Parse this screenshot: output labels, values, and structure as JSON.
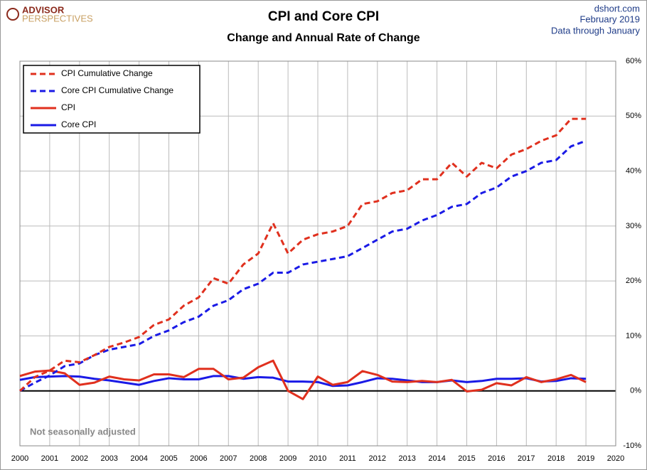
{
  "header": {
    "logo_top": "ADVISOR",
    "logo_bottom": "PERSPECTIVES",
    "source": "dshort.com",
    "date": "February 2019",
    "data_note": "Data through January"
  },
  "chart_data": {
    "type": "line",
    "title": "CPI and Core CPI",
    "subtitle": "Change and Annual Rate of Change",
    "annotation": "Not seasonally adjusted",
    "x": [
      2000,
      2000.5,
      2001,
      2001.5,
      2002,
      2002.5,
      2003,
      2003.5,
      2004,
      2004.5,
      2005,
      2005.5,
      2006,
      2006.5,
      2007,
      2007.5,
      2008,
      2008.5,
      2009,
      2009.5,
      2010,
      2010.5,
      2011,
      2011.5,
      2012,
      2012.5,
      2013,
      2013.5,
      2014,
      2014.5,
      2015,
      2015.5,
      2016,
      2016.5,
      2017,
      2017.5,
      2018,
      2018.5,
      2019
    ],
    "series": [
      {
        "name": "CPI Cumulative Change",
        "color": "#e0301e",
        "dashed": true,
        "values": [
          0,
          2.5,
          3.7,
          5.5,
          5.2,
          6.5,
          8.0,
          8.8,
          9.8,
          12,
          13,
          15.5,
          17,
          20.5,
          19.5,
          23,
          25,
          30.5,
          25,
          27.5,
          28.5,
          29,
          30,
          34,
          34.5,
          36,
          36.5,
          38.5,
          38.5,
          41.5,
          39,
          41.5,
          40.5,
          43,
          44,
          45.5,
          46.5,
          49.5,
          49.5
        ]
      },
      {
        "name": "Core CPI Cumulative Change",
        "color": "#1a1ae6",
        "dashed": true,
        "values": [
          0,
          1.5,
          2.8,
          4.5,
          5.0,
          6.5,
          7.5,
          8.0,
          8.5,
          10,
          11,
          12.5,
          13.5,
          15.5,
          16.5,
          18.5,
          19.5,
          21.5,
          21.5,
          23,
          23.5,
          24,
          24.5,
          26,
          27.5,
          29,
          29.5,
          31,
          32,
          33.5,
          34,
          36,
          37,
          39,
          40,
          41.5,
          42,
          44.5,
          45.5
        ]
      },
      {
        "name": "CPI",
        "color": "#e0301e",
        "dashed": false,
        "values": [
          2.7,
          3.5,
          3.7,
          3.2,
          1.1,
          1.5,
          2.6,
          2.1,
          1.9,
          3.0,
          3.0,
          2.5,
          4.0,
          4.0,
          2.1,
          2.4,
          4.3,
          5.5,
          0.0,
          -1.5,
          2.6,
          1.1,
          1.6,
          3.6,
          2.9,
          1.7,
          1.6,
          1.8,
          1.6,
          2.0,
          -0.1,
          0.2,
          1.4,
          1.0,
          2.5,
          1.6,
          2.1,
          2.9,
          1.6
        ]
      },
      {
        "name": "Core CPI",
        "color": "#1a1ae6",
        "dashed": false,
        "values": [
          2.0,
          2.5,
          2.6,
          2.7,
          2.6,
          2.2,
          1.9,
          1.5,
          1.1,
          1.8,
          2.3,
          2.1,
          2.1,
          2.7,
          2.7,
          2.2,
          2.5,
          2.4,
          1.7,
          1.7,
          1.6,
          0.9,
          1.0,
          1.6,
          2.3,
          2.2,
          1.9,
          1.6,
          1.6,
          1.9,
          1.6,
          1.8,
          2.2,
          2.2,
          2.3,
          1.7,
          1.8,
          2.3,
          2.2
        ]
      }
    ],
    "xlim": [
      2000,
      2020
    ],
    "xticks": [
      2000,
      2001,
      2002,
      2003,
      2004,
      2005,
      2006,
      2007,
      2008,
      2009,
      2010,
      2011,
      2012,
      2013,
      2014,
      2015,
      2016,
      2017,
      2018,
      2019,
      2020
    ],
    "ylim": [
      -10,
      60
    ],
    "yticks": [
      {
        "value": -10,
        "label": "-10%"
      },
      {
        "value": 0,
        "label": "0%"
      },
      {
        "value": 10,
        "label": "10%"
      },
      {
        "value": 20,
        "label": "20%"
      },
      {
        "value": 30,
        "label": "30%"
      },
      {
        "value": 40,
        "label": "40%"
      },
      {
        "value": 50,
        "label": "50%"
      },
      {
        "value": 60,
        "label": "60%"
      }
    ],
    "grid": true,
    "legend": "top-left"
  }
}
